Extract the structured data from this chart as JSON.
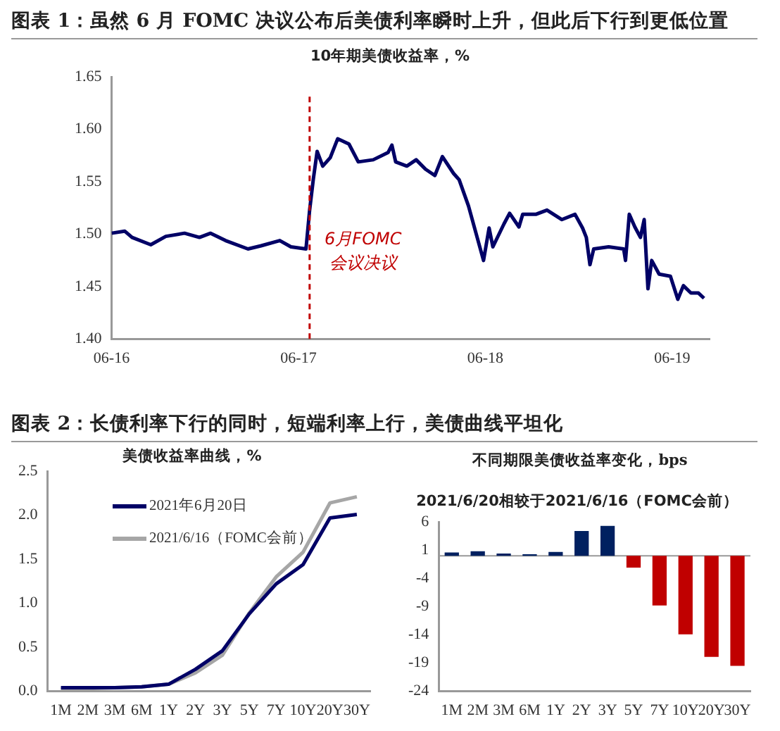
{
  "chart_data": [
    {
      "type": "line",
      "title": "图表 1：虽然 6 月 FOMC 决议公布后美债利率瞬时上升，但此后下行到更低位置",
      "subtitle": "10年期美债收益率，%",
      "x": [
        "--06-16T00:00",
        "--06-16T01:41",
        "--06-16T02:38",
        "--06-16T05:02",
        "--06-16T06:58",
        "--06-16T09:22",
        "--06-16T11:17",
        "--06-16T12:43",
        "--06-16T14:38",
        "--06-16T17:31",
        "--06-16T19:12",
        "--06-16T21:36",
        "--06-16T23:02",
        "--06-17T00:58",
        "--06-17T01:26",
        "--06-17T01:55",
        "--06-17T02:24",
        "--06-17T03:07",
        "--06-17T04:05",
        "--06-17T05:02",
        "--06-17T06:29",
        "--06-17T07:41",
        "--06-17T09:36",
        "--06-17T11:31",
        "--06-17T12:00",
        "--06-17T12:29",
        "--06-17T13:55",
        "--06-17T15:07",
        "--06-17T16:19",
        "--06-17T17:31",
        "--06-17T18:29",
        "--06-17T19:55",
        "--06-17T20:38",
        "--06-17T21:50",
        "--06-17T22:48",
        "--06-17T23:46",
        "--06-18T00:29",
        "--06-18T00:58",
        "--06-18T02:24",
        "--06-18T03:07",
        "--06-18T04:19",
        "--06-18T04:48",
        "--06-18T06:29",
        "--06-18T07:55",
        "--06-18T09:50",
        "--06-18T11:31",
        "--06-18T12:29",
        "--06-18T12:58",
        "--06-18T13:26",
        "--06-18T13:55",
        "--06-18T15:50",
        "--06-18T17:46",
        "--06-18T18:00",
        "--06-18T18:29",
        "--06-18T19:12",
        "--06-18T19:55",
        "--06-18T20:24",
        "--06-18T20:53",
        "--06-18T21:22",
        "--06-18T22:19",
        "--06-18T23:46",
        "--06-19T00:43",
        "--06-19T01:26",
        "--06-19T02:24",
        "--06-19T03:22",
        "--06-19T04:05"
      ],
      "series": [
        {
          "color": "#000066",
          "values": [
            1.501,
            1.503,
            1.497,
            1.49,
            1.498,
            1.501,
            1.497,
            1.501,
            1.494,
            1.486,
            1.489,
            1.494,
            1.488,
            1.486,
            1.523,
            1.553,
            1.579,
            1.565,
            1.573,
            1.591,
            1.586,
            1.569,
            1.571,
            1.578,
            1.585,
            1.569,
            1.565,
            1.571,
            1.562,
            1.556,
            1.574,
            1.558,
            1.552,
            1.527,
            1.501,
            1.475,
            1.506,
            1.488,
            1.51,
            1.52,
            1.507,
            1.519,
            1.519,
            1.523,
            1.514,
            1.519,
            1.506,
            1.497,
            1.471,
            1.486,
            1.488,
            1.486,
            1.475,
            1.519,
            1.507,
            1.497,
            1.514,
            1.448,
            1.475,
            1.462,
            1.46,
            1.438,
            1.451,
            1.444,
            1.444,
            1.439
          ]
        }
      ],
      "xlim": [
        "--06-16T00:00",
        "--06-19T04:48"
      ],
      "xticks": [
        {
          "value": "--06-16",
          "label": "06-16"
        },
        {
          "value": "--06-17",
          "label": "06-17"
        },
        {
          "value": "--06-18",
          "label": "06-18"
        },
        {
          "value": "--06-19",
          "label": "06-19"
        }
      ],
      "ylim": [
        1.4,
        1.65
      ],
      "yticks": [
        {
          "value": 1.4,
          "label": "1.40"
        },
        {
          "value": 1.45,
          "label": "1.45"
        },
        {
          "value": 1.5,
          "label": "1.50"
        },
        {
          "value": 1.55,
          "label": "1.55"
        },
        {
          "value": 1.6,
          "label": "1.60"
        },
        {
          "value": 1.65,
          "label": "1.65"
        }
      ],
      "ref_lines": [
        {
          "axis": "x",
          "value": "--06-17T01:26",
          "label": "6月FOMC会议决议",
          "color": "#c00000",
          "line_style": "dashed"
        }
      ],
      "grid": false,
      "legend": false,
      "marker": "none"
    },
    {
      "type": "line",
      "title": "图表 2：长债利率下行的同时，短端利率上行，美债曲线平坦化",
      "subtitle": "美债收益率曲线，%",
      "categories": [
        "1M",
        "2M",
        "3M",
        "6M",
        "1Y",
        "2Y",
        "3Y",
        "5Y",
        "7Y",
        "10Y",
        "20Y",
        "30Y"
      ],
      "series": [
        {
          "name": "2021年6月20日",
          "color": "#000066",
          "values": [
            0.04,
            0.04,
            0.04,
            0.05,
            0.08,
            0.25,
            0.46,
            0.88,
            1.22,
            1.44,
            1.97,
            2.01
          ]
        },
        {
          "name": "2021/6/16（FOMC会前）",
          "color": "#a6a6a6",
          "values": [
            0.03,
            0.03,
            0.04,
            0.05,
            0.08,
            0.21,
            0.41,
            0.89,
            1.3,
            1.58,
            2.14,
            2.21
          ]
        }
      ],
      "ylim": [
        0,
        2.5
      ],
      "yticks": [
        {
          "value": 0,
          "label": "0.0"
        },
        {
          "value": 0.5,
          "label": "0.5"
        },
        {
          "value": 1,
          "label": "1.0"
        },
        {
          "value": 1.5,
          "label": "1.5"
        },
        {
          "value": 2,
          "label": "2.0"
        },
        {
          "value": 2.5,
          "label": "2.5"
        }
      ],
      "grid": false,
      "legend": "top left",
      "marker": "none"
    },
    {
      "type": "bar",
      "title": "不同期限美债收益率变化，bps",
      "subtitle": "2021/6/20相较于2021/6/16（FOMC会前）",
      "categories": [
        "1M",
        "2M",
        "3M",
        "6M",
        "1Y",
        "2Y",
        "3Y",
        "5Y",
        "7Y",
        "10Y",
        "20Y",
        "30Y"
      ],
      "values": [
        0.6,
        0.8,
        0.4,
        0.3,
        0.7,
        4.4,
        5.3,
        -2.1,
        -8.8,
        -13.9,
        -17.9,
        -19.5
      ],
      "colors": [
        "#002060",
        "#002060",
        "#002060",
        "#002060",
        "#002060",
        "#002060",
        "#002060",
        "#c00000",
        "#c00000",
        "#c00000",
        "#c00000",
        "#c00000"
      ],
      "ylim": [
        -24,
        6
      ],
      "yticks": [
        -24,
        -19,
        -14,
        -9,
        -4,
        1,
        6
      ],
      "grid": false,
      "legend": false
    }
  ]
}
